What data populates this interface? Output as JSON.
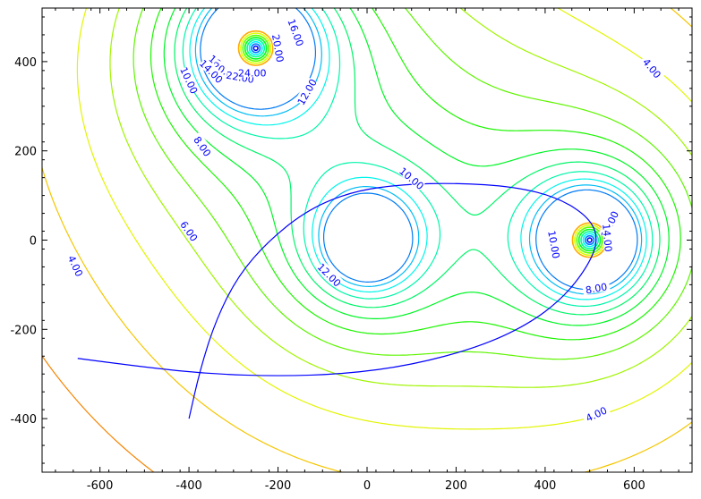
{
  "chart_data": {
    "type": "contour",
    "title": "",
    "xlabel": "",
    "ylabel": "",
    "xlim": [
      -730,
      730
    ],
    "ylim": [
      -520,
      520
    ],
    "x_ticks": [
      -600,
      -400,
      -200,
      0,
      200,
      400,
      600
    ],
    "y_ticks": [
      -400,
      -200,
      0,
      200,
      400
    ],
    "x_tick_labels": [
      "-600",
      "-400",
      "-200",
      "0",
      "200",
      "400",
      "600"
    ],
    "y_tick_labels": [
      "-400",
      "-200",
      "0",
      "200",
      "400"
    ],
    "grid": false,
    "colors": {
      "frame": "#000000",
      "trajectory": "#0000ff",
      "label": "#0000ff",
      "low_contour": "#ff2000"
    },
    "sources": [
      {
        "x": -250,
        "y": 430,
        "strength": 1.0
      },
      {
        "x": 0,
        "y": 0,
        "strength": 0.62
      },
      {
        "x": 500,
        "y": 0,
        "strength": 0.85
      }
    ],
    "levels": [
      4,
      6,
      8,
      10,
      12,
      14,
      16,
      18,
      20,
      22,
      24,
      26,
      28,
      30
    ],
    "contour_labels": [
      {
        "text": "16.00",
        "x": -160,
        "y": 465,
        "angle": 70
      },
      {
        "text": "20.00",
        "x": -200,
        "y": 430,
        "angle": 80
      },
      {
        "text": "18.00",
        "x": -328,
        "y": 390,
        "angle": 40
      },
      {
        "text": "20.00",
        "x": -318,
        "y": 378,
        "angle": 30
      },
      {
        "text": "14.00",
        "x": -350,
        "y": 378,
        "angle": 45
      },
      {
        "text": "22.00",
        "x": -285,
        "y": 365,
        "angle": 10
      },
      {
        "text": "24.00",
        "x": -258,
        "y": 375,
        "angle": 0
      },
      {
        "text": "10.00",
        "x": -400,
        "y": 358,
        "angle": 65
      },
      {
        "text": "12.00",
        "x": -135,
        "y": 332,
        "angle": -60
      },
      {
        "text": "8.00",
        "x": -370,
        "y": 210,
        "angle": 55
      },
      {
        "text": "10.00",
        "x": 100,
        "y": 138,
        "angle": 40
      },
      {
        "text": "6.00",
        "x": -400,
        "y": 20,
        "angle": 55
      },
      {
        "text": "12.00",
        "x": -85,
        "y": -78,
        "angle": 45
      },
      {
        "text": "4.00",
        "x": -655,
        "y": -58,
        "angle": 65
      },
      {
        "text": "10.00",
        "x": 420,
        "y": -10,
        "angle": 80
      },
      {
        "text": "12.00",
        "x": 545,
        "y": 35,
        "angle": -65
      },
      {
        "text": "14.00",
        "x": 540,
        "y": 5,
        "angle": 85
      },
      {
        "text": "8.00",
        "x": 515,
        "y": -108,
        "angle": -10
      },
      {
        "text": "4.00",
        "x": 640,
        "y": 385,
        "angle": 50
      },
      {
        "text": "4.00",
        "x": 515,
        "y": -390,
        "angle": -25
      }
    ],
    "trajectory": [
      [
        -650,
        -265
      ],
      [
        -500,
        -285
      ],
      [
        -350,
        -300
      ],
      [
        -200,
        -305
      ],
      [
        -50,
        -300
      ],
      [
        100,
        -280
      ],
      [
        250,
        -240
      ],
      [
        360,
        -190
      ],
      [
        440,
        -130
      ],
      [
        495,
        -60
      ],
      [
        520,
        0
      ],
      [
        500,
        50
      ],
      [
        430,
        95
      ],
      [
        330,
        120
      ],
      [
        200,
        128
      ],
      [
        80,
        125
      ],
      [
        -30,
        110
      ],
      [
        -130,
        70
      ],
      [
        -220,
        0
      ],
      [
        -290,
        -80
      ],
      [
        -340,
        -180
      ],
      [
        -375,
        -290
      ],
      [
        -400,
        -400
      ]
    ]
  }
}
